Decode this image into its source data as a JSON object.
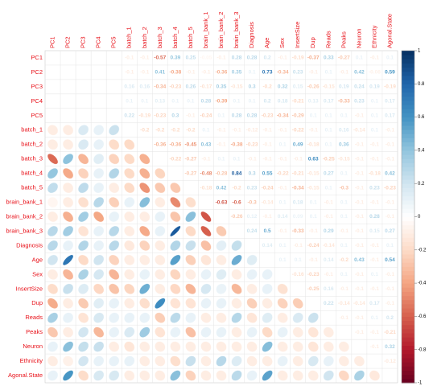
{
  "chart_data": {
    "type": "corrplot-mixed",
    "variables": [
      "PC1",
      "PC2",
      "PC3",
      "PC4",
      "PC5",
      "batch_1",
      "batch_2",
      "batch_3",
      "batch_4",
      "batch_5",
      "brain_bank_1",
      "brain_bank_2",
      "brain_bank_3",
      "Diagnosis",
      "Age",
      "Sex",
      "InsertSize",
      "Dup",
      "Reads",
      "Peaks",
      "Neuron",
      "Ethnicity",
      "Agonal.State"
    ],
    "upper": [
      [
        0,
        0,
        0,
        0,
        -0.1,
        -0.1,
        -0.57,
        0.39,
        0.25,
        -0.05,
        -0.1,
        0.28,
        0.28,
        0.2,
        -0.1,
        -0.19,
        -0.37,
        0.33,
        -0.27,
        0.1,
        -0.1,
        0.1
      ],
      [
        0,
        0,
        0,
        -0.1,
        -0.1,
        0.41,
        -0.38,
        -0.1,
        -0.1,
        -0.36,
        0.35,
        0.1,
        0.73,
        -0.34,
        0.23,
        -0.1,
        0.1,
        -0.1,
        0.42,
        -0.08,
        0.59
      ],
      [
        0,
        0,
        0.16,
        0.16,
        -0.34,
        -0.23,
        0.26,
        -0.17,
        0.35,
        -0.15,
        0.3,
        -0.2,
        0.32,
        0.15,
        -0.26,
        -0.15,
        0.19,
        0.24,
        0.19,
        -0.19
      ],
      [
        0,
        0.1,
        0.1,
        0.13,
        0.1,
        0.1,
        0.28,
        -0.39,
        0.1,
        0.1,
        0.2,
        0.18,
        -0.21,
        0.13,
        0.17,
        -0.33,
        0.23,
        0.1,
        0.17
      ],
      [
        0.22,
        -0.19,
        -0.23,
        0.3,
        -0.1,
        -0.24,
        0.1,
        0.28,
        0.28,
        -0.23,
        -0.34,
        -0.29,
        0.1,
        0.1,
        0.1,
        -0.1,
        0.1,
        0.17
      ],
      [
        -0.2,
        -0.2,
        -0.2,
        -0.2,
        0.1,
        -0.1,
        -0.1,
        -0.12,
        -0.1,
        -0.1,
        -0.22,
        -0.1,
        0.1,
        0.16,
        -0.14,
        0.1,
        -0.1
      ],
      [
        -0.36,
        -0.36,
        -0.45,
        0.43,
        -0.1,
        -0.38,
        -0.23,
        -0.1,
        0.1,
        0.49,
        -0.18,
        0.1,
        0.36,
        -0.1,
        -0.1,
        -0.1
      ],
      [
        -0.22,
        -0.27,
        -0.1,
        0.1,
        0.1,
        -0.1,
        -0.1,
        -0.1,
        -0.1,
        0.63,
        -0.25,
        -0.15,
        -0.1,
        -0.1,
        -0.1
      ],
      [
        -0.27,
        -0.48,
        -0.28,
        0.84,
        0.3,
        0.55,
        -0.22,
        -0.21,
        -0.15,
        0.27,
        0.1,
        -0.1,
        -0.18,
        0.42
      ],
      [
        -0.18,
        0.42,
        -0.2,
        0.23,
        -0.24,
        -0.1,
        -0.34,
        -0.15,
        0.1,
        -0.3,
        -0.1,
        0.23,
        -0.23
      ],
      [
        -0.63,
        -0.6,
        -0.3,
        -0.14,
        0.1,
        0.18,
        0.1,
        -0.1,
        0.1,
        -0.1,
        -0.1,
        -0.1
      ],
      [
        -0.26,
        0.12,
        -0.1,
        0.14,
        0.09,
        0.1,
        -0.1,
        0.1,
        -0.1,
        0.28,
        -0.1
      ],
      [
        0.24,
        0.5,
        -0.1,
        -0.33,
        -0.1,
        0.29,
        -0.1,
        -0.1,
        0.15,
        0.27
      ],
      [
        0.14,
        0.1,
        -0.1,
        -0.24,
        -0.14,
        0.1,
        -0.1,
        -0.1,
        0.1
      ],
      [
        0.1,
        0.1,
        -0.1,
        0.14,
        -0.2,
        0.43,
        -0.1,
        0.54
      ],
      [
        -0.16,
        -0.23,
        -0.1,
        0.1,
        -0.1,
        0.1,
        -0.1
      ],
      [
        -0.25,
        0.16,
        -0.1,
        -0.1,
        -0.1,
        -0.1
      ],
      [
        0.22,
        -0.14,
        -0.14,
        0.17,
        -0.1
      ],
      [
        -0.1,
        -0.1,
        0.1,
        0.2
      ],
      [
        -0.1,
        -0.1,
        -0.21
      ],
      [
        -0.1,
        0.32
      ],
      [
        -0.12
      ]
    ],
    "colors": [
      "#67001F",
      "#B2182B",
      "#D6604D",
      "#F4A582",
      "#FDDBC7",
      "#FFFFFF",
      "#D1E5F0",
      "#92C5DE",
      "#4393C3",
      "#2166AC",
      "#053061"
    ],
    "label_color": "#e8121a",
    "clim": [
      -1,
      1
    ],
    "cticks": [
      1,
      0.8,
      0.6,
      0.4,
      0.2,
      0,
      -0.2,
      -0.4,
      -0.6,
      -0.8,
      -1
    ]
  }
}
